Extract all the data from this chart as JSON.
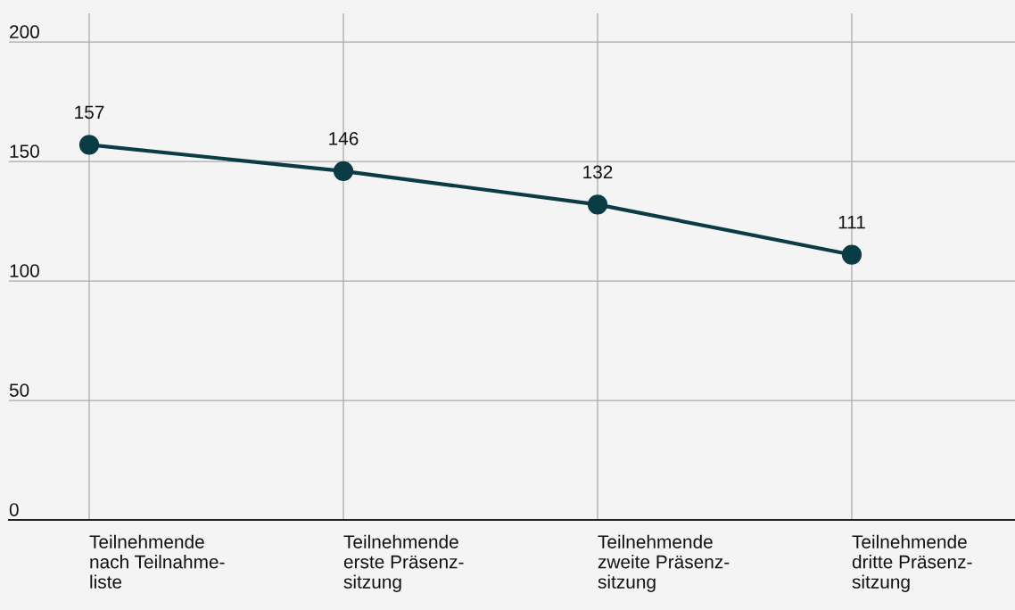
{
  "chart_data": {
    "type": "line",
    "categories": [
      "Teilnehmende\nnach Teilnahme-\nliste",
      "Teilnehmende\nerste Präsenz-\nsitzung",
      "Teilnehmende\nzweite Präsenz-\nsitzung",
      "Teilnehmende\ndritte Präsenz-\nsitzung"
    ],
    "series": [
      {
        "color": "#0b3c45",
        "values": [
          157,
          146,
          132,
          111
        ]
      }
    ],
    "ylim": [
      0,
      212
    ],
    "yticks": [
      0,
      50,
      100,
      150,
      200
    ],
    "grid": true,
    "marker": "circle",
    "line_style": "solid",
    "data_labels": true
  }
}
